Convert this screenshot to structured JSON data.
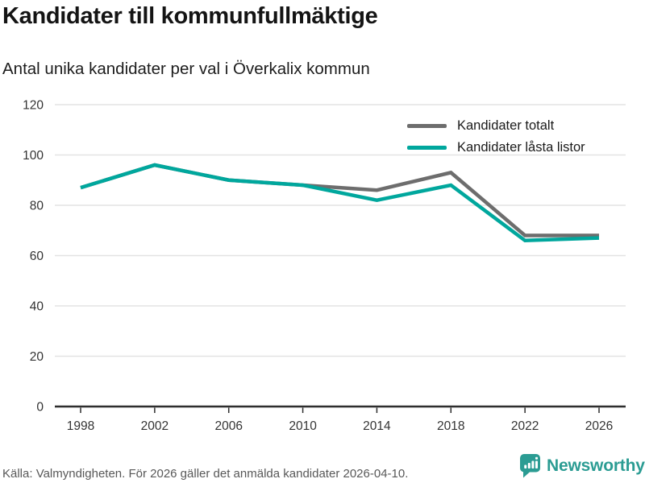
{
  "title": "Kandidater till kommunfullmäktige",
  "subtitle": "Antal unika kandidater per val i Överkalix kommun",
  "footer": {
    "source": "Källa: Valmyndigheten. För 2026 gäller det anmälda kandidater 2026-04-10.",
    "brand": "Newsworthy"
  },
  "colors": {
    "total_line": "#6d6d6d",
    "locked_line": "#00a79d",
    "brand_teal": "#2b9c93",
    "gridline": "#e3e3e3",
    "axis": "#2e2e2e"
  },
  "chart_data": {
    "type": "line",
    "categories": [
      "1998",
      "2002",
      "2006",
      "2010",
      "2014",
      "2018",
      "2022",
      "2026"
    ],
    "series": [
      {
        "name": "Kandidater totalt",
        "color": "#6d6d6d",
        "values": [
          87,
          96,
          90,
          88,
          86,
          93,
          68,
          68
        ]
      },
      {
        "name": "Kandidater låsta listor",
        "color": "#00a79d",
        "values": [
          87,
          96,
          90,
          88,
          82,
          88,
          66,
          67
        ]
      }
    ],
    "xlabel": "",
    "ylabel": "",
    "ylim": [
      0,
      120
    ],
    "yticks": [
      0,
      20,
      40,
      60,
      80,
      100,
      120
    ],
    "grid": "horizontal",
    "legend_position": "top-right-inside"
  }
}
